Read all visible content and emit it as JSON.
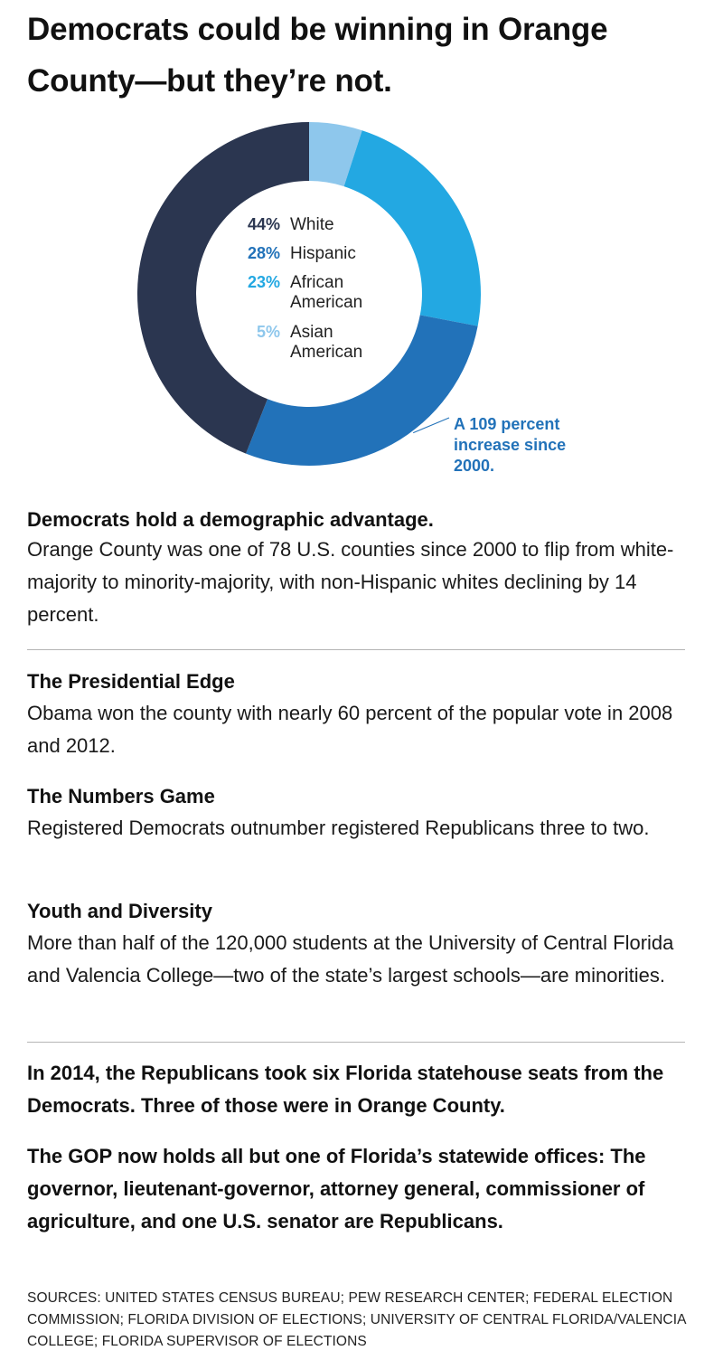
{
  "headline": "Democrats could be winning in Orange County—but they’re not.",
  "chart_data": {
    "type": "pie",
    "variant": "donut",
    "categories": [
      "White",
      "Hispanic",
      "African American",
      "Asian American"
    ],
    "values": [
      44,
      28,
      23,
      5
    ],
    "value_labels": [
      "44%",
      "28%",
      "23%",
      "5%"
    ],
    "label_lines": [
      [
        "White"
      ],
      [
        "Hispanic"
      ],
      [
        "African",
        "American"
      ],
      [
        "Asian",
        "American"
      ]
    ],
    "colors": [
      "#2b3650",
      "#2272b9",
      "#23a8e2",
      "#8ec7ec"
    ],
    "label_colors": [
      "#2b3650",
      "#2272b9",
      "#23a8e2",
      "#8ec7ec"
    ],
    "annotation": {
      "target": "Hispanic",
      "lines": [
        "A 109 percent",
        "increase since",
        "2000."
      ],
      "color": "#2272b9"
    }
  },
  "sections": [
    {
      "heading": "Democrats hold a demographic advantage.",
      "body": "Orange County was one of 78 U.S. counties since 2000 to flip from white-majority to minority-majority, with non-Hispanic whites declining by 14 percent."
    },
    {
      "heading": "The Presidential Edge",
      "body": "Obama won the county with nearly 60 percent of the popular vote in 2008 and 2012."
    },
    {
      "heading": "The Numbers Game",
      "body": "Registered Democrats outnumber registered Republicans three to two."
    },
    {
      "heading": "Youth and Diversity",
      "body": "More than half of the 120,000 students at the University of Central Florida and Valencia College—two of the state’s largest schools—are minorities."
    }
  ],
  "conclusions": [
    "In 2014, the Republicans took six Florida statehouse seats from the Democrats. Three of those were in Orange County.",
    "The GOP now holds all but one of Florida’s statewide offices: The governor, lieutenant-governor, attorney general, commissioner of agriculture, and one U.S. senator are Republicans."
  ],
  "sources": "SOURCES: UNITED STATES CENSUS BUREAU; PEW RESEARCH CENTER; FEDERAL ELECTION COMMISSION; FLORIDA DIVISION OF ELECTIONS; UNIVERSITY OF CENTRAL FLORIDA/VALENCIA COLLEGE; FLORIDA SUPERVISOR OF ELECTIONS"
}
